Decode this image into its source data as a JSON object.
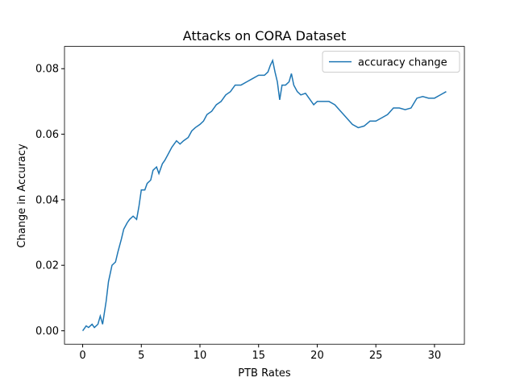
{
  "chart_data": {
    "type": "line",
    "title": "Attacks on CORA Dataset",
    "x_label": "PTB Rates",
    "y_label": "Change in Accuracy",
    "x": [
      0,
      0.3,
      0.5,
      0.8,
      1.0,
      1.3,
      1.5,
      1.7,
      2.0,
      2.2,
      2.5,
      2.8,
      3.0,
      3.3,
      3.5,
      3.8,
      4.0,
      4.3,
      4.6,
      4.8,
      5.0,
      5.3,
      5.5,
      5.8,
      6.0,
      6.3,
      6.5,
      6.8,
      7.0,
      7.3,
      7.6,
      8.0,
      8.3,
      8.6,
      9.0,
      9.3,
      9.6,
      10.0,
      10.3,
      10.6,
      11.0,
      11.4,
      11.8,
      12.2,
      12.6,
      13.0,
      13.5,
      14.0,
      14.5,
      15.0,
      15.5,
      15.8,
      16.0,
      16.2,
      16.4,
      16.6,
      16.8,
      17.0,
      17.3,
      17.6,
      17.8,
      18.0,
      18.3,
      18.6,
      19.0,
      19.3,
      19.7,
      20.0,
      20.5,
      21.0,
      21.5,
      22.0,
      22.5,
      23.0,
      23.5,
      24.0,
      24.5,
      25.0,
      25.5,
      26.0,
      26.5,
      27.0,
      27.5,
      28.0,
      28.5,
      29.0,
      29.5,
      30.0,
      30.5,
      31.0
    ],
    "series": [
      {
        "name": "accuracy change",
        "color": "#1f77b4",
        "values": [
          0.0,
          0.0015,
          0.001,
          0.002,
          0.001,
          0.002,
          0.0045,
          0.002,
          0.009,
          0.015,
          0.02,
          0.021,
          0.024,
          0.028,
          0.031,
          0.033,
          0.034,
          0.035,
          0.034,
          0.038,
          0.043,
          0.043,
          0.045,
          0.046,
          0.049,
          0.05,
          0.048,
          0.051,
          0.052,
          0.054,
          0.056,
          0.058,
          0.057,
          0.058,
          0.059,
          0.061,
          0.062,
          0.063,
          0.064,
          0.066,
          0.067,
          0.069,
          0.07,
          0.072,
          0.073,
          0.075,
          0.075,
          0.076,
          0.077,
          0.078,
          0.078,
          0.079,
          0.081,
          0.0825,
          0.079,
          0.076,
          0.0705,
          0.075,
          0.075,
          0.076,
          0.0785,
          0.075,
          0.073,
          0.072,
          0.0725,
          0.071,
          0.069,
          0.07,
          0.07,
          0.07,
          0.069,
          0.067,
          0.065,
          0.063,
          0.062,
          0.0625,
          0.064,
          0.064,
          0.065,
          0.066,
          0.068,
          0.068,
          0.0675,
          0.068,
          0.071,
          0.0715,
          0.071,
          0.071,
          0.072,
          0.073
        ]
      }
    ],
    "xlim": [
      -1.55,
      32.55
    ],
    "ylim": [
      -0.0041,
      0.0868
    ],
    "xticks": [
      0,
      5,
      10,
      15,
      20,
      25,
      30
    ],
    "yticks": [
      {
        "value": 0,
        "label": "0.00"
      },
      {
        "value": 0.02,
        "label": "0.02"
      },
      {
        "value": 0.04,
        "label": "0.04"
      },
      {
        "value": 0.06,
        "label": "0.06"
      },
      {
        "value": 0.08,
        "label": "0.08"
      }
    ],
    "legend": "upper right"
  }
}
